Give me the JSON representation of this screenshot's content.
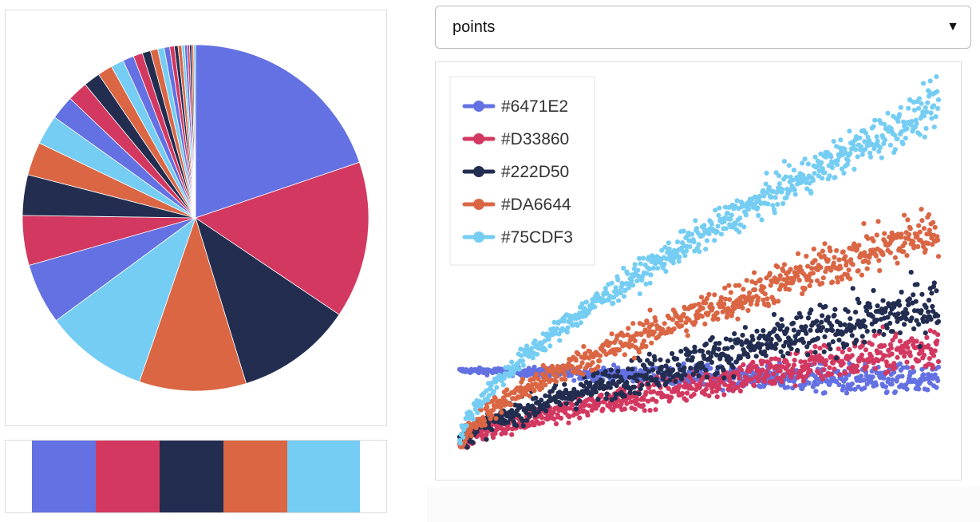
{
  "select": {
    "value": "points"
  },
  "palette": [
    "#6471E2",
    "#D33860",
    "#222D50",
    "#DA6644",
    "#75CDF3"
  ],
  "chart_data": [
    {
      "type": "pie",
      "title": "",
      "slice_colors": [
        "#6471E2",
        "#D33860",
        "#222D50",
        "#DA6644",
        "#75CDF3"
      ],
      "values": [
        115,
        85,
        63,
        58,
        56,
        33,
        27,
        22,
        18,
        16,
        13,
        11,
        9,
        8,
        7,
        6,
        5,
        4.5,
        4,
        3.5,
        3,
        2.5,
        2,
        2,
        1.5,
        1.5,
        1.2,
        1.2,
        1,
        1
      ]
    },
    {
      "type": "scatter",
      "title": "",
      "legend_position": "top-left",
      "xlim": [
        0,
        1000
      ],
      "ylim": [
        -20,
        520
      ],
      "x_count": 700,
      "series": [
        {
          "name": "#6471E2",
          "color": "#6471E2",
          "trend": [
            105,
            90
          ],
          "spread": [
            2,
            18
          ]
        },
        {
          "name": "#D33860",
          "color": "#D33860",
          "trend": [
            0,
            140
          ],
          "spread": [
            8,
            22
          ]
        },
        {
          "name": "#222D50",
          "color": "#222D50",
          "trend": [
            0,
            195
          ],
          "spread": [
            10,
            28
          ]
        },
        {
          "name": "#DA6644",
          "color": "#DA6644",
          "trend": [
            0,
            300
          ],
          "spread": [
            10,
            25
          ]
        },
        {
          "name": "#75CDF3",
          "color": "#75CDF3",
          "trend": [
            0,
            470
          ],
          "spread": [
            8,
            22
          ]
        }
      ]
    }
  ]
}
